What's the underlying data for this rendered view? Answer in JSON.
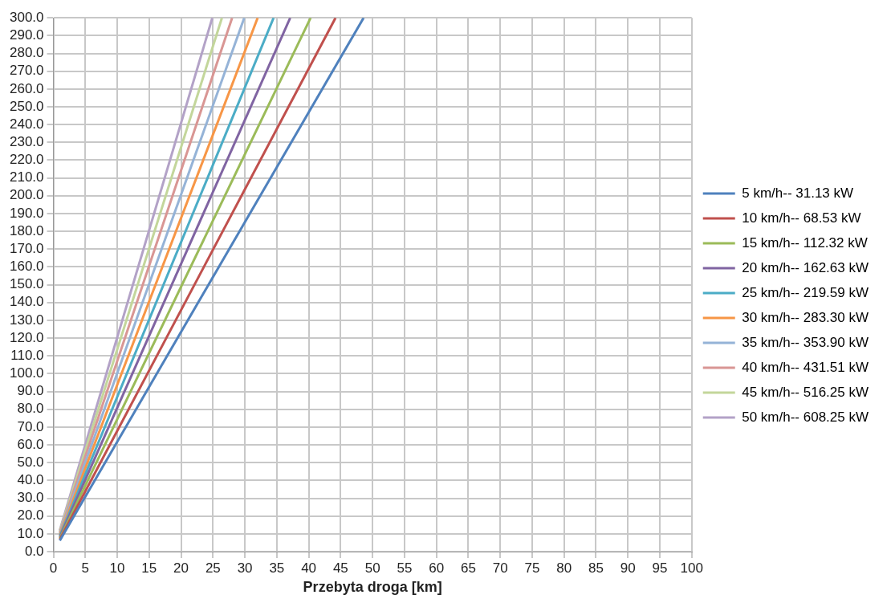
{
  "chart_data": {
    "type": "line",
    "xlabel": "Przebyta droga [km]",
    "xlim": [
      0,
      100
    ],
    "xticks": [
      0,
      5,
      10,
      15,
      20,
      25,
      30,
      35,
      40,
      45,
      50,
      55,
      60,
      65,
      70,
      75,
      80,
      85,
      90,
      95,
      100
    ],
    "ylim": [
      0,
      300
    ],
    "yticks": [
      {
        "value": 0,
        "label": "0.0"
      },
      {
        "value": 10,
        "label": "10.0"
      },
      {
        "value": 20,
        "label": "20.0"
      },
      {
        "value": 30,
        "label": "30.0"
      },
      {
        "value": 40,
        "label": "40.0"
      },
      {
        "value": 50,
        "label": "50.0"
      },
      {
        "value": 60,
        "label": "60.0"
      },
      {
        "value": 70,
        "label": "70.0"
      },
      {
        "value": 80,
        "label": "80.0"
      },
      {
        "value": 90,
        "label": "90.0"
      },
      {
        "value": 100,
        "label": "100.0"
      },
      {
        "value": 110,
        "label": "110.0"
      },
      {
        "value": 120,
        "label": "120.0"
      },
      {
        "value": 130,
        "label": "130.0"
      },
      {
        "value": 140,
        "label": "140.0"
      },
      {
        "value": 150,
        "label": "150.0"
      },
      {
        "value": 160,
        "label": "160.0"
      },
      {
        "value": 170,
        "label": "170.0"
      },
      {
        "value": 180,
        "label": "180.0"
      },
      {
        "value": 190,
        "label": "190.0"
      },
      {
        "value": 200,
        "label": "200.0"
      },
      {
        "value": 210,
        "label": "210.0"
      },
      {
        "value": 220,
        "label": "220.0"
      },
      {
        "value": 230,
        "label": "230.0"
      },
      {
        "value": 240,
        "label": "240.0"
      },
      {
        "value": 250,
        "label": "250.0"
      },
      {
        "value": 260,
        "label": "260.0"
      },
      {
        "value": 270,
        "label": "270.0"
      },
      {
        "value": 280,
        "label": "280.0"
      },
      {
        "value": 290,
        "label": "290.0"
      },
      {
        "value": 300,
        "label": "300.0"
      }
    ],
    "grid": true,
    "legend": "right",
    "marker": "none",
    "line_style": "solid",
    "series": [
      {
        "name": "5 km/h-- 31.13 kW",
        "color": "#4f81bd",
        "x": [
          1,
          48.6
        ],
        "values": [
          6.2,
          300
        ]
      },
      {
        "name": "10 km/h-- 68.53 kW",
        "color": "#c0504d",
        "x": [
          1,
          44.2
        ],
        "values": [
          6.8,
          300
        ]
      },
      {
        "name": "15 km/h-- 112.32 kW",
        "color": "#9bbb59",
        "x": [
          1,
          40.3
        ],
        "values": [
          7.4,
          300
        ]
      },
      {
        "name": "20 km/h-- 162.63 kW",
        "color": "#8064a2",
        "x": [
          1,
          37.1
        ],
        "values": [
          8.1,
          300
        ]
      },
      {
        "name": "25 km/h-- 219.59 kW",
        "color": "#4bacc6",
        "x": [
          1,
          34.5
        ],
        "values": [
          8.7,
          300
        ]
      },
      {
        "name": "30 km/h-- 283.30 kW",
        "color": "#f79646",
        "x": [
          1,
          32.0
        ],
        "values": [
          9.4,
          300
        ]
      },
      {
        "name": "35 km/h-- 353.90 kW",
        "color": "#95b3d7",
        "x": [
          1,
          29.9
        ],
        "values": [
          10.0,
          300
        ]
      },
      {
        "name": "40 km/h-- 431.51 kW",
        "color": "#d99694",
        "x": [
          1,
          28.0
        ],
        "values": [
          10.7,
          300
        ]
      },
      {
        "name": "45 km/h-- 516.25 kW",
        "color": "#c3d69b",
        "x": [
          1,
          26.4
        ],
        "values": [
          11.4,
          300
        ]
      },
      {
        "name": "50 km/h-- 608.25 kW",
        "color": "#b3a2c7",
        "x": [
          1,
          24.9
        ],
        "values": [
          12.0,
          300
        ]
      }
    ]
  }
}
